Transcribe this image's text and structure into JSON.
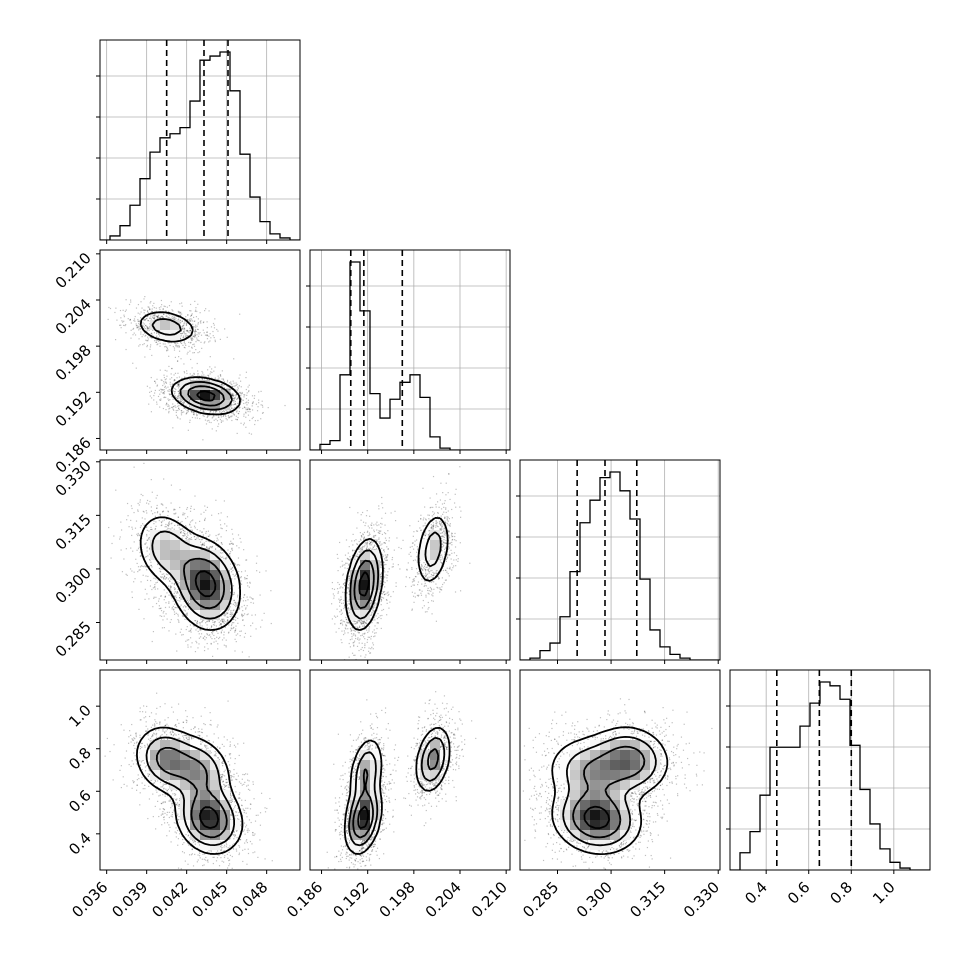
{
  "chart_data": {
    "type": "corner",
    "params": [
      {
        "range": [
          0.0355,
          0.0505
        ],
        "ticks": [
          "0.036",
          "0.039",
          "0.042",
          "0.045",
          "0.048"
        ],
        "tick_values": [
          0.036,
          0.039,
          0.042,
          0.045,
          0.048
        ],
        "quantiles": [
          0.0405,
          0.0433,
          0.0451
        ],
        "hist": {
          "edges_start": 0.0355,
          "bin": 0.00075,
          "counts": [
            0.0,
            0.02,
            0.07,
            0.17,
            0.3,
            0.43,
            0.5,
            0.52,
            0.55,
            0.68,
            0.88,
            0.9,
            0.92,
            0.73,
            0.42,
            0.21,
            0.09,
            0.03,
            0.01,
            0.0
          ]
        }
      },
      {
        "range": [
          0.1845,
          0.2105
        ],
        "ticks": [
          "0.186",
          "0.192",
          "0.198",
          "0.204",
          "0.210"
        ],
        "tick_values": [
          0.186,
          0.192,
          0.198,
          0.204,
          0.21
        ],
        "quantiles": [
          0.1898,
          0.1915,
          0.1965
        ],
        "hist": {
          "edges_start": 0.1845,
          "bin": 0.0013,
          "counts": [
            0.0,
            0.03,
            0.05,
            0.4,
            1.0,
            0.74,
            0.3,
            0.17,
            0.27,
            0.36,
            0.4,
            0.28,
            0.07,
            0.01,
            0.0,
            0.0,
            0.0,
            0.0,
            0.0,
            0.0
          ]
        }
      },
      {
        "range": [
          0.2745,
          0.3305
        ],
        "ticks": [
          "0.285",
          "0.300",
          "0.315",
          "0.330"
        ],
        "tick_values": [
          0.285,
          0.3,
          0.315,
          0.33
        ],
        "quantiles": [
          0.2905,
          0.2983,
          0.3072
        ],
        "hist": {
          "edges_start": 0.2745,
          "bin": 0.0028,
          "counts": [
            0.0,
            0.01,
            0.05,
            0.09,
            0.23,
            0.47,
            0.73,
            0.85,
            0.97,
            1.0,
            0.9,
            0.75,
            0.43,
            0.16,
            0.07,
            0.03,
            0.01,
            0.0,
            0.0,
            0.0
          ]
        }
      },
      {
        "range": [
          0.23,
          1.17
        ],
        "ticks": [
          "0.4",
          "0.6",
          "0.8",
          "1.0"
        ],
        "tick_values": [
          0.4,
          0.6,
          0.8,
          1.0
        ],
        "quantiles": [
          0.45,
          0.65,
          0.8
        ],
        "hist": {
          "edges_start": 0.23,
          "bin": 0.047,
          "counts": [
            0.0,
            0.09,
            0.2,
            0.39,
            0.64,
            0.64,
            0.64,
            0.75,
            0.87,
            0.98,
            0.96,
            0.89,
            0.65,
            0.42,
            0.24,
            0.11,
            0.04,
            0.01,
            0.0,
            0.0
          ]
        }
      }
    ]
  }
}
